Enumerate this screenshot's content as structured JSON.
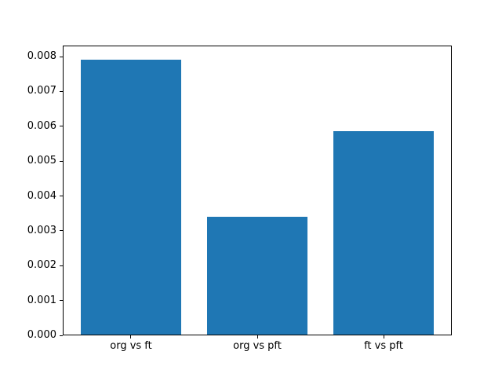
{
  "figure": {
    "background": "#ffffff"
  },
  "chart_data": {
    "type": "bar",
    "categories": [
      "org vs ft",
      "org vs pft",
      "ft vs pft"
    ],
    "values": [
      0.00792,
      0.0034,
      0.00586
    ],
    "title": "",
    "xlabel": "",
    "ylabel": "",
    "ylim": [
      0,
      0.008316
    ],
    "yticks": [
      0,
      0.001,
      0.002,
      0.003,
      0.004,
      0.005,
      0.006,
      0.007,
      0.008
    ],
    "ytick_format_decimals": 3,
    "bar_color": "#1f77b4",
    "spine_color": "#000000",
    "tick_label_color": "#000000",
    "grid": false,
    "legend": null
  }
}
